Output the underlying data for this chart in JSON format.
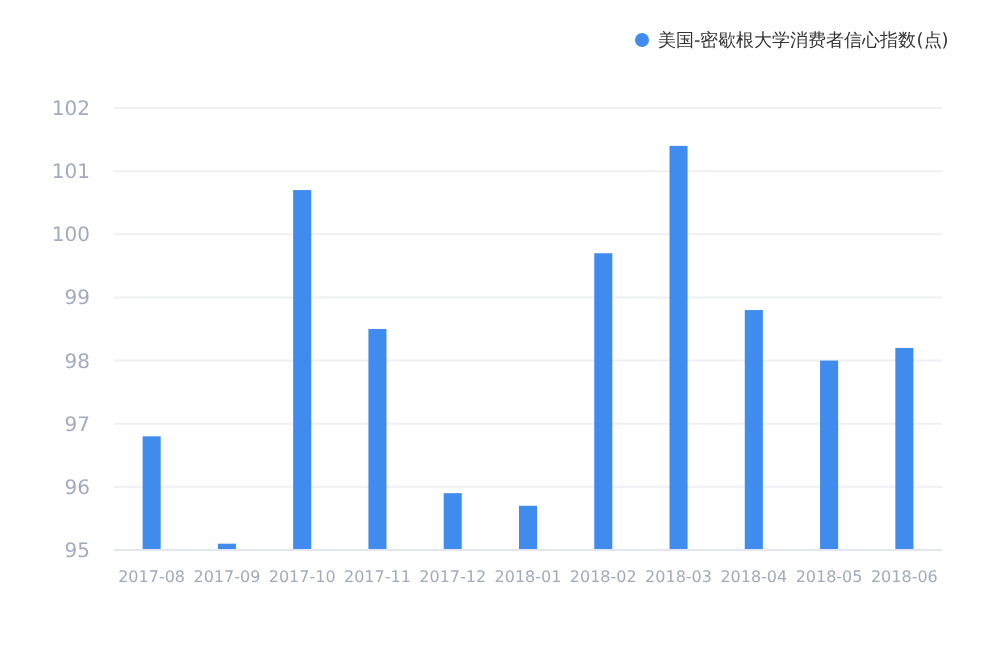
{
  "chart_data": {
    "type": "bar",
    "categories": [
      "2017-08",
      "2017-09",
      "2017-10",
      "2017-11",
      "2017-12",
      "2018-01",
      "2018-02",
      "2018-03",
      "2018-04",
      "2018-05",
      "2018-06"
    ],
    "series": [
      {
        "name": "美国-密歇根大学消费者信心指数(点)",
        "color": "#3f8cee",
        "values": [
          96.8,
          95.1,
          100.7,
          98.5,
          95.9,
          95.7,
          99.7,
          101.4,
          98.8,
          98.0,
          98.2
        ]
      }
    ],
    "ylim": [
      95,
      102
    ],
    "yticks": [
      95,
      96,
      97,
      98,
      99,
      100,
      101,
      102
    ],
    "grid": "y",
    "legend": "top right"
  }
}
